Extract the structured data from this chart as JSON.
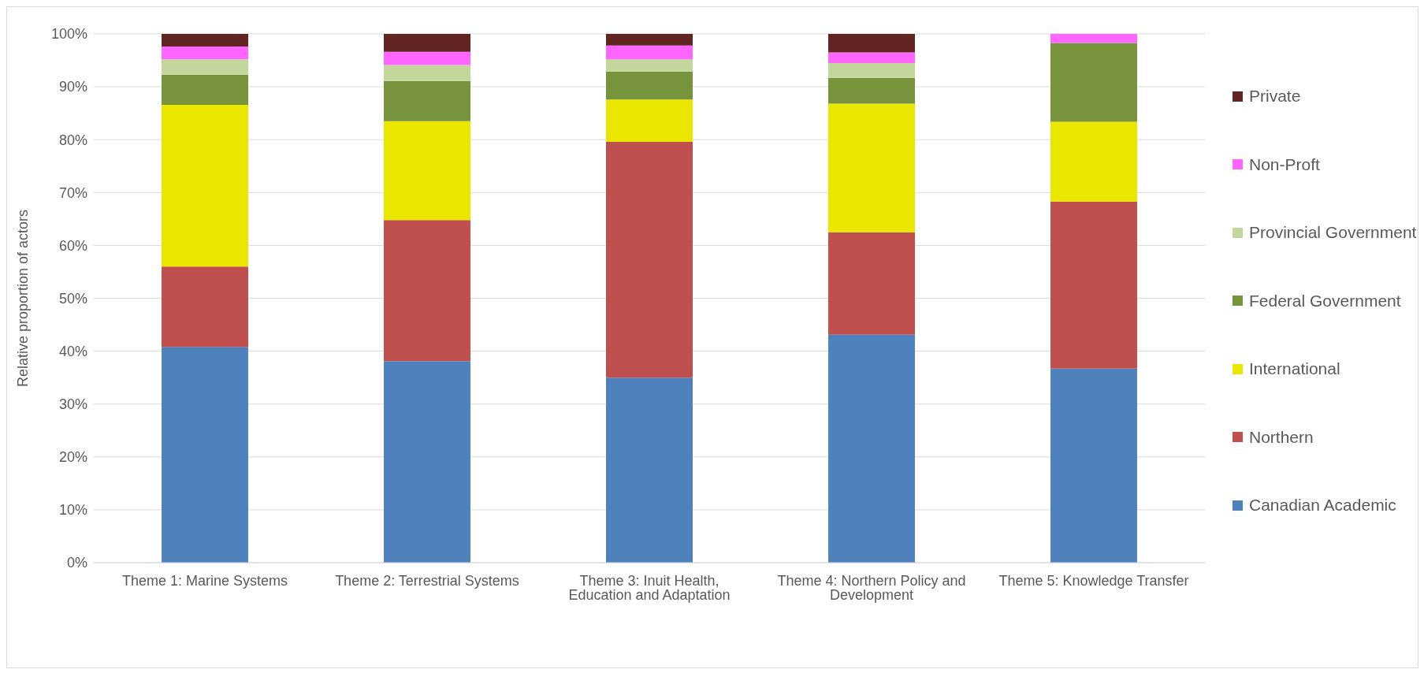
{
  "chart_data": {
    "type": "bar",
    "stacked": true,
    "ylabel": "Relative proportion of actors",
    "categories": [
      "Theme 1: Marine Systems",
      "Theme 2: Terrestrial Systems",
      "Theme 3: Inuit Health, Education and Adaptation",
      "Theme 4: Northern Policy and Development",
      "Theme 5: Knowledge Transfer"
    ],
    "series": [
      {
        "name": "Canadian Academic",
        "color": "#4f81bd",
        "values": [
          40.8,
          38.1,
          35.0,
          43.1,
          36.7
        ]
      },
      {
        "name": "Northern",
        "color": "#c0504d",
        "values": [
          15.2,
          26.7,
          44.6,
          19.4,
          31.6
        ]
      },
      {
        "name": "International",
        "color": "#ebe600",
        "values": [
          30.6,
          18.7,
          8.0,
          24.3,
          15.1
        ]
      },
      {
        "name": "Federal Government",
        "color": "#77933c",
        "values": [
          5.7,
          7.6,
          5.3,
          4.9,
          14.9
        ]
      },
      {
        "name": "Provincial Government",
        "color": "#c3d69b",
        "values": [
          2.9,
          3.0,
          2.3,
          2.8,
          0
        ]
      },
      {
        "name": "Non-Proft",
        "color": "#ff66ff",
        "values": [
          2.4,
          2.5,
          2.6,
          2.0,
          1.7
        ]
      },
      {
        "name": "Private",
        "color": "#632523",
        "values": [
          2.4,
          3.4,
          2.2,
          3.5,
          0
        ]
      }
    ],
    "ylim": [
      0,
      100
    ],
    "yticks": [
      {
        "value": 0,
        "label": "0%"
      },
      {
        "value": 10,
        "label": "10%"
      },
      {
        "value": 20,
        "label": "20%"
      },
      {
        "value": 30,
        "label": "30%"
      },
      {
        "value": 40,
        "label": "40%"
      },
      {
        "value": 50,
        "label": "50%"
      },
      {
        "value": 60,
        "label": "60%"
      },
      {
        "value": 70,
        "label": "70%"
      },
      {
        "value": 80,
        "label": "80%"
      },
      {
        "value": 90,
        "label": "90%"
      },
      {
        "value": 100,
        "label": "100%"
      }
    ],
    "grid": "y",
    "legend": "right"
  }
}
